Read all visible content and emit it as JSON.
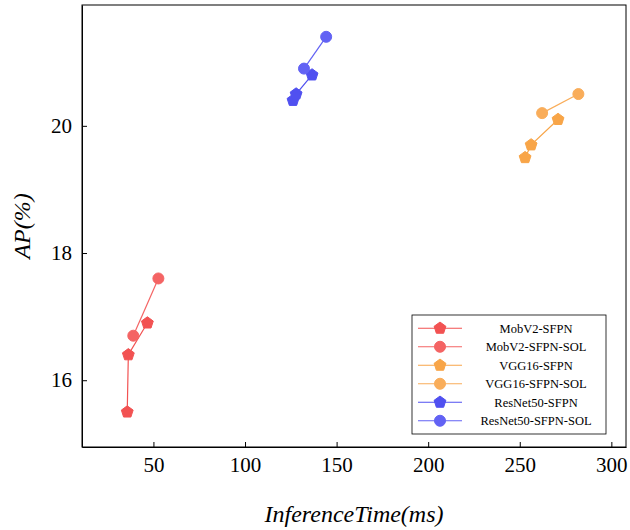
{
  "chart_data": {
    "type": "line",
    "x_label": "InferenceTime(ms)",
    "y_label": "AP(%)",
    "xlim": [
      11,
      308
    ],
    "ylim": [
      14.95,
      21.9
    ],
    "xticks": [
      50,
      100,
      150,
      200,
      250,
      300
    ],
    "yticks": [
      16,
      18,
      20
    ],
    "grid": false,
    "legend": "lower right",
    "series": [
      {
        "name": "MobV2-SFPN",
        "color": "#f25252",
        "marker": "pentagon",
        "x": [
          35.7,
          36.3,
          46.7
        ],
        "values": [
          15.5,
          16.4,
          16.9
        ]
      },
      {
        "name": "MobV2-SFPN-SOL",
        "color": "#f46464",
        "marker": "circle",
        "x": [
          39.0,
          52.7
        ],
        "values": [
          16.7,
          17.6
        ]
      },
      {
        "name": "VGG16-SFPN",
        "color": "#f8a548",
        "marker": "pentagon",
        "x": [
          252.9,
          256.2,
          270.9
        ],
        "values": [
          19.5,
          19.7,
          20.1
        ]
      },
      {
        "name": "VGG16-SFPN-SOL",
        "color": "#f9ad5a",
        "marker": "circle",
        "x": [
          262.2,
          282.0
        ],
        "values": [
          20.2,
          20.5
        ]
      },
      {
        "name": "ResNet50-SFPN",
        "color": "#5050f0",
        "marker": "pentagon",
        "x": [
          126.2,
          127.9,
          136.6
        ],
        "values": [
          20.4,
          20.5,
          20.8
        ]
      },
      {
        "name": "ResNet50-SFPN-SOL",
        "color": "#6262f4",
        "marker": "circle",
        "x": [
          132.2,
          144.3
        ],
        "values": [
          20.9,
          21.4
        ]
      }
    ]
  }
}
